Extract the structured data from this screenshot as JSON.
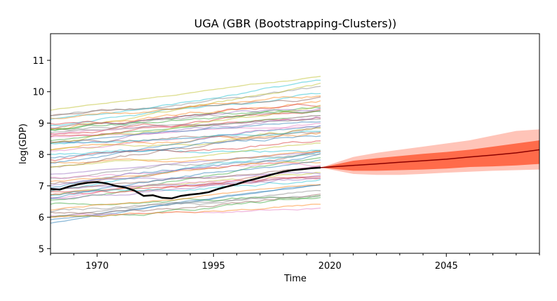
{
  "chart_data": {
    "type": "line",
    "title": "UGA (GBR (Bootstrapping-Clusters))",
    "xlabel": "Time",
    "ylabel": "log(GDP)",
    "xlim": [
      1960,
      2065
    ],
    "ylim": [
      4.85,
      11.85
    ],
    "x_ticks": [
      1970,
      1995,
      2020,
      2045
    ],
    "y_ticks": [
      5,
      6,
      7,
      8,
      9,
      10,
      11
    ],
    "grid": false,
    "legend": "none",
    "history_range": [
      1960,
      2018
    ],
    "background_series_note_count": 62,
    "background_bands": {
      "low_start": [
        5.8,
        6.4,
        6.9,
        7.4,
        7.8,
        8.3,
        8.8,
        9.2,
        9.6
      ],
      "slope_per_year": 0.012
    },
    "highlight_series": {
      "name": "UGA",
      "color": "#000000",
      "x": [
        1960,
        1962,
        1964,
        1966,
        1968,
        1970,
        1972,
        1974,
        1976,
        1978,
        1980,
        1982,
        1984,
        1986,
        1988,
        1990,
        1992,
        1994,
        1996,
        1998,
        2000,
        2002,
        2004,
        2006,
        2008,
        2010,
        2012,
        2014,
        2016,
        2018
      ],
      "y": [
        6.9,
        6.88,
        6.98,
        7.05,
        7.1,
        7.12,
        7.08,
        7.0,
        6.95,
        6.85,
        6.68,
        6.7,
        6.62,
        6.6,
        6.68,
        6.72,
        6.75,
        6.8,
        6.9,
        6.98,
        7.05,
        7.15,
        7.22,
        7.3,
        7.38,
        7.45,
        7.5,
        7.53,
        7.56,
        7.58
      ]
    },
    "forecast": {
      "x": [
        2018,
        2025,
        2030,
        2035,
        2040,
        2045,
        2050,
        2055,
        2060,
        2065
      ],
      "median": [
        7.58,
        7.65,
        7.7,
        7.75,
        7.8,
        7.85,
        7.92,
        7.98,
        8.05,
        8.15
      ],
      "inner_low": [
        7.58,
        7.48,
        7.48,
        7.5,
        7.52,
        7.55,
        7.6,
        7.62,
        7.65,
        7.7
      ],
      "inner_high": [
        7.58,
        7.8,
        7.88,
        7.95,
        8.02,
        8.08,
        8.15,
        8.25,
        8.35,
        8.45
      ],
      "outer_low": [
        7.58,
        7.38,
        7.35,
        7.35,
        7.38,
        7.42,
        7.45,
        7.48,
        7.5,
        7.52
      ],
      "outer_high": [
        7.58,
        7.92,
        8.05,
        8.15,
        8.25,
        8.35,
        8.45,
        8.6,
        8.75,
        8.8
      ],
      "median_color": "#8b0000",
      "inner_color": "#ff6b4a",
      "outer_color": "#ffc4b8"
    }
  }
}
